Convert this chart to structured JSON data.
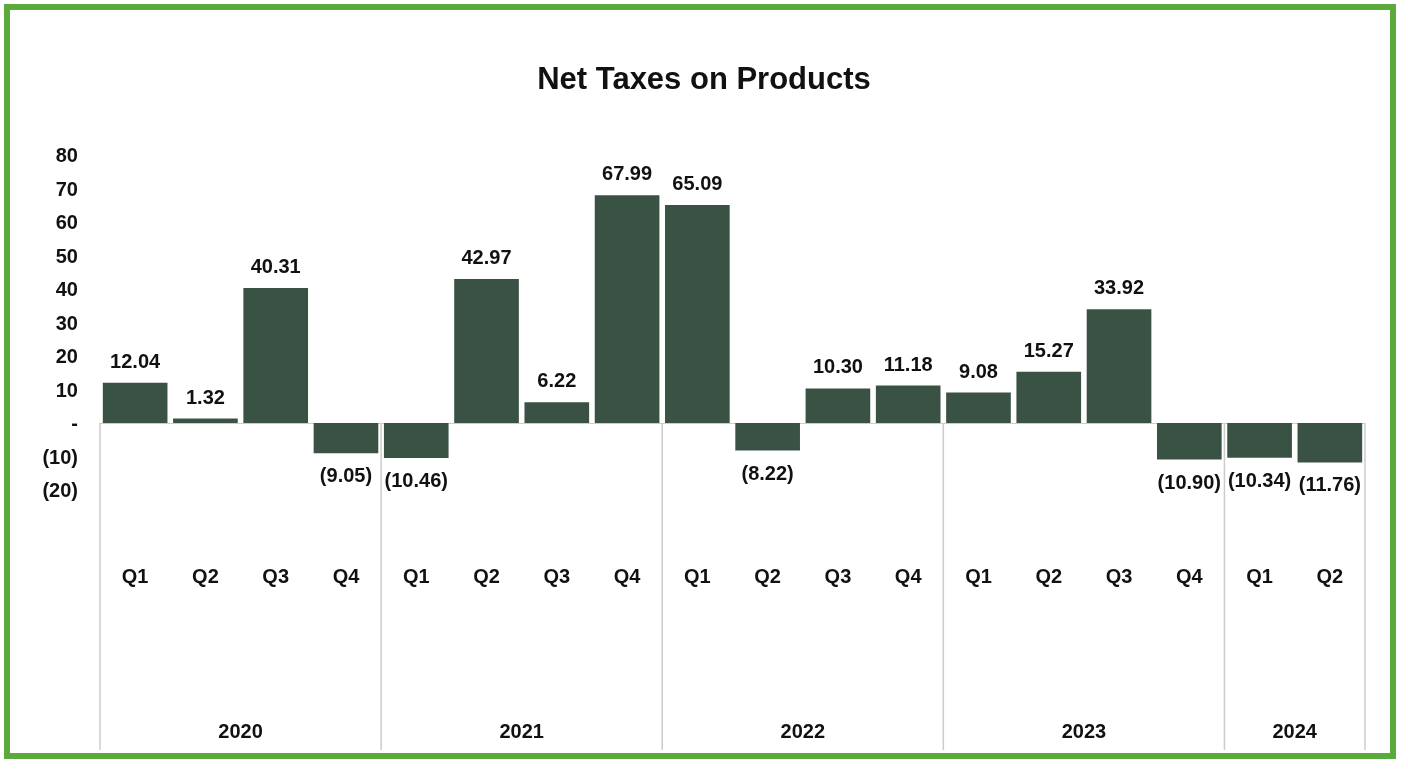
{
  "chart_data": {
    "type": "bar",
    "title": "Net Taxes on Products",
    "categories": [
      "Q1",
      "Q2",
      "Q3",
      "Q4",
      "Q1",
      "Q2",
      "Q3",
      "Q4",
      "Q1",
      "Q2",
      "Q3",
      "Q4",
      "Q1",
      "Q2",
      "Q3",
      "Q4",
      "Q1",
      "Q2"
    ],
    "values": [
      12.04,
      1.32,
      40.31,
      -9.05,
      -10.46,
      42.97,
      6.22,
      67.99,
      65.09,
      -8.22,
      10.3,
      11.18,
      9.08,
      15.27,
      33.92,
      -10.9,
      -10.34,
      -11.76
    ],
    "value_labels": [
      "12.04",
      "1.32",
      "40.31",
      "(9.05)",
      "(10.46)",
      "42.97",
      "6.22",
      "67.99",
      "65.09",
      "(8.22)",
      "10.30",
      "11.18",
      "9.08",
      "15.27",
      "33.92",
      "(10.90)",
      "(10.34)",
      "(11.76)"
    ],
    "color": "#3a5244",
    "ylim": [
      -20,
      80
    ],
    "yticks": [
      {
        "value": -20,
        "label": "(20)"
      },
      {
        "value": -10,
        "label": "(10)"
      },
      {
        "value": 0,
        "label": "-"
      },
      10,
      20,
      30,
      40,
      50,
      60,
      70,
      80
    ],
    "annotations": [
      "2020",
      "2021",
      "2022",
      "2023",
      "2024"
    ]
  }
}
